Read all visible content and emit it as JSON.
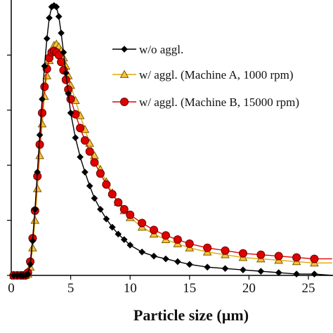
{
  "chart_data": {
    "type": "line",
    "title": "",
    "xlabel": "Particle size (µm)",
    "ylabel": "",
    "xlim": [
      0,
      27
    ],
    "ylim": [
      0,
      2.0
    ],
    "x_ticks": [
      "0",
      "5",
      "10",
      "15",
      "20",
      "25"
    ],
    "y_ticks": [
      0,
      0.4,
      0.8,
      1.2,
      1.6
    ],
    "grid": false,
    "legend_position": "top-right",
    "series": [
      {
        "name": "w/o aggl.",
        "color": "#000000",
        "marker": "diamond",
        "x": [
          0.2,
          0.5,
          0.8,
          1.0,
          1.2,
          1.4,
          1.6,
          1.8,
          2.0,
          2.2,
          2.4,
          2.6,
          2.8,
          3.0,
          3.2,
          3.4,
          3.6,
          3.8,
          4.0,
          4.2,
          4.4,
          4.6,
          4.8,
          5.0,
          5.4,
          5.8,
          6.2,
          6.6,
          7.0,
          7.5,
          8.0,
          8.5,
          9.0,
          9.5,
          10.0,
          11.0,
          12.0,
          13.0,
          14.0,
          15.0,
          16.5,
          18.0,
          19.5,
          21.0,
          22.5,
          24.0,
          25.5,
          27.0
        ],
        "y": [
          0,
          0,
          0,
          0,
          0,
          0.01,
          0.08,
          0.25,
          0.48,
          0.75,
          1.02,
          1.28,
          1.52,
          1.72,
          1.87,
          1.95,
          1.96,
          1.95,
          1.88,
          1.76,
          1.62,
          1.47,
          1.32,
          1.18,
          1.0,
          0.86,
          0.75,
          0.65,
          0.56,
          0.48,
          0.41,
          0.35,
          0.3,
          0.26,
          0.22,
          0.17,
          0.14,
          0.12,
          0.1,
          0.08,
          0.06,
          0.05,
          0.04,
          0.03,
          0.02,
          0.01,
          0.01,
          0.0
        ]
      },
      {
        "name": "w/ aggl. (Machine A, 1000 rpm)",
        "color": "#e0a800",
        "marker": "triangle",
        "x": [
          0.2,
          0.5,
          0.8,
          1.0,
          1.2,
          1.4,
          1.6,
          1.8,
          2.0,
          2.2,
          2.4,
          2.6,
          2.8,
          3.0,
          3.2,
          3.4,
          3.6,
          3.8,
          4.0,
          4.2,
          4.4,
          4.6,
          4.8,
          5.0,
          5.4,
          5.8,
          6.2,
          6.6,
          7.0,
          7.5,
          8.0,
          8.5,
          9.0,
          9.5,
          10.0,
          11.0,
          12.0,
          13.0,
          14.0,
          15.0,
          16.5,
          18.0,
          19.5,
          21.0,
          22.5,
          24.0,
          25.5,
          27.0
        ],
        "y": [
          0,
          0,
          0,
          0,
          0,
          0.01,
          0.06,
          0.2,
          0.4,
          0.63,
          0.87,
          1.1,
          1.3,
          1.45,
          1.56,
          1.63,
          1.67,
          1.68,
          1.66,
          1.63,
          1.58,
          1.52,
          1.45,
          1.38,
          1.27,
          1.16,
          1.06,
          0.96,
          0.87,
          0.77,
          0.68,
          0.6,
          0.53,
          0.47,
          0.42,
          0.35,
          0.3,
          0.26,
          0.23,
          0.2,
          0.17,
          0.15,
          0.13,
          0.12,
          0.11,
          0.1,
          0.09,
          0.09
        ]
      },
      {
        "name": "w/ aggl. (Machine B, 15000 rpm)",
        "color": "#e00000",
        "marker": "circle",
        "x": [
          0.2,
          0.5,
          0.8,
          1.0,
          1.2,
          1.4,
          1.6,
          1.8,
          2.0,
          2.2,
          2.4,
          2.6,
          2.8,
          3.0,
          3.2,
          3.4,
          3.6,
          3.8,
          4.0,
          4.2,
          4.4,
          4.6,
          4.8,
          5.0,
          5.4,
          5.8,
          6.2,
          6.6,
          7.0,
          7.5,
          8.0,
          8.5,
          9.0,
          9.5,
          10.0,
          11.0,
          12.0,
          13.0,
          14.0,
          15.0,
          16.5,
          18.0,
          19.5,
          21.0,
          22.5,
          24.0,
          25.5,
          27.0
        ],
        "y": [
          0,
          0,
          0,
          0,
          0,
          0.02,
          0.1,
          0.27,
          0.47,
          0.72,
          0.95,
          1.18,
          1.37,
          1.5,
          1.58,
          1.62,
          1.63,
          1.62,
          1.6,
          1.55,
          1.49,
          1.42,
          1.35,
          1.28,
          1.17,
          1.07,
          0.98,
          0.9,
          0.82,
          0.74,
          0.66,
          0.59,
          0.53,
          0.48,
          0.44,
          0.38,
          0.33,
          0.29,
          0.26,
          0.23,
          0.2,
          0.18,
          0.16,
          0.15,
          0.14,
          0.13,
          0.12,
          0.12
        ]
      }
    ]
  }
}
